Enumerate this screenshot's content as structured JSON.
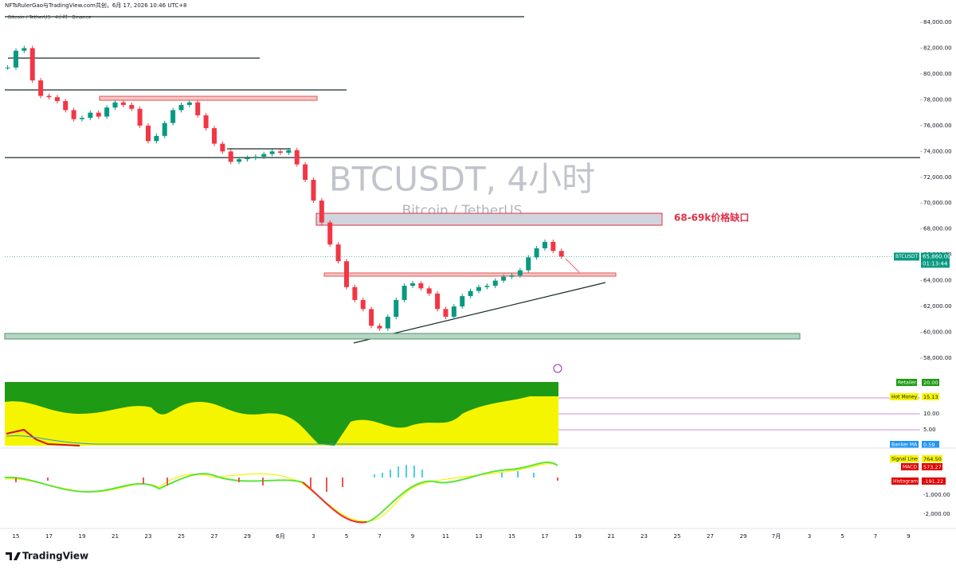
{
  "header": {
    "attribution": "NFTsRulerGao与TradingView.com共创，6月 17, 2026 10:46 UTC+8",
    "symbol_line": "Bitcoin / TetherUS · 4小时 · Binance"
  },
  "chart_data": {
    "type": "candlestick",
    "watermark_title": "BTCUSDT, 4小时",
    "watermark_subtitle": "Bitcoin / TetherUS",
    "annotation": "68-69k价格缺口",
    "values": [
      80500,
      81800,
      82000,
      79500,
      78300,
      78200,
      77900,
      77200,
      76500,
      76600,
      77000,
      76700,
      77400,
      77800,
      77600,
      77300,
      76000,
      74800,
      75200,
      76200,
      77200,
      77600,
      77800,
      76800,
      75800,
      74600,
      74000,
      73200,
      73400,
      73500,
      73600,
      73800,
      74000,
      73900,
      74100,
      73000,
      71800,
      70200,
      68500,
      66800,
      65500,
      63500,
      62500,
      61800,
      60500,
      60300,
      61200,
      62500,
      63600,
      63800,
      63400,
      63000,
      61800,
      61200,
      62000,
      62800,
      63200,
      63500,
      63600,
      64000,
      64300,
      64400,
      64800,
      65800,
      66500,
      67000,
      66300,
      65860
    ],
    "up_color": "#089981",
    "down_color": "#f23645",
    "ylim": [
      58000,
      84000
    ],
    "yticks": [
      {
        "value": 58000,
        "label": "58,000.00"
      },
      {
        "value": 60000,
        "label": "60,000.00"
      },
      {
        "value": 62000,
        "label": "62,000.00"
      },
      {
        "value": 64000,
        "label": "64,000.00"
      },
      {
        "value": 66000,
        "label": "66,000.00"
      },
      {
        "value": 68000,
        "label": "68,000.00"
      },
      {
        "value": 70000,
        "label": "70,000.00"
      },
      {
        "value": 72000,
        "label": "72,000.00"
      },
      {
        "value": 74000,
        "label": "74,000.00"
      },
      {
        "value": 76000,
        "label": "76,000.00"
      },
      {
        "value": 78000,
        "label": "78,000.00"
      },
      {
        "value": 80000,
        "label": "80,000.00"
      },
      {
        "value": 82000,
        "label": "82,000.00"
      },
      {
        "value": 84000,
        "label": "84,000.00"
      }
    ],
    "x_tick_labels": [
      "15",
      "17",
      "19",
      "21",
      "23",
      "25",
      "27",
      "29",
      "6月",
      "3",
      "5",
      "7",
      "9",
      "11",
      "13",
      "15",
      "17",
      "19",
      "21",
      "23",
      "25",
      "27",
      "29",
      "7月",
      "3",
      "5",
      "7",
      "9"
    ],
    "last_price": {
      "symbol": "BTCUSDT",
      "value": 65860,
      "label": "65,860.00",
      "countdown": "01:13:44"
    }
  },
  "indicators": {
    "retailer": {
      "name": "Retailer",
      "value": "20.00"
    },
    "hot_money": {
      "name": "Hot Money",
      "value": "15.13"
    },
    "levels": [
      "10.00",
      "5.00"
    ],
    "banker_ma": {
      "name": "Banker MA",
      "value": "0.59"
    },
    "signal_line": {
      "name": "Signal Line",
      "value": "764.50"
    },
    "macd": {
      "name": "MACD",
      "value": "573.27"
    },
    "histogram": {
      "name": "Histogram",
      "value": "-191.22"
    },
    "macd_axis": [
      "-1,000.00",
      "-2,000.00"
    ]
  },
  "footer": {
    "logo": "TradingView"
  }
}
